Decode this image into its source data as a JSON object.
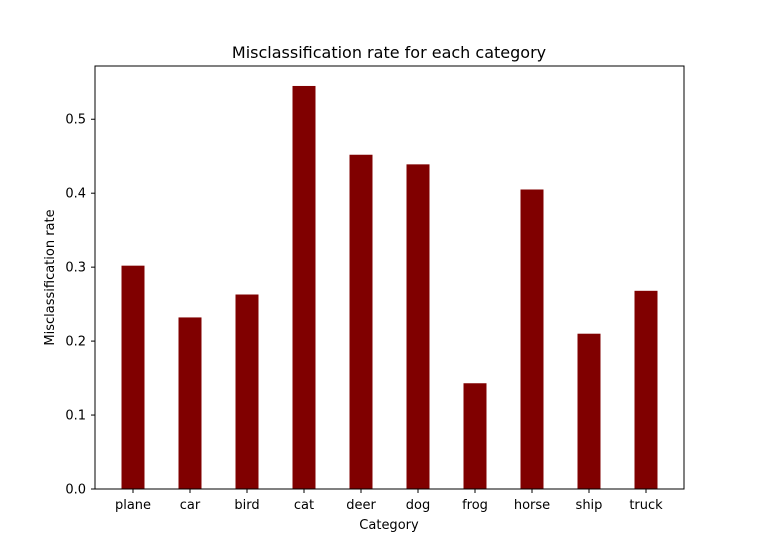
{
  "chart_data": {
    "type": "bar",
    "title": "Misclassification rate for each category",
    "xlabel": "Category",
    "ylabel": "Misclassification rate",
    "categories": [
      "plane",
      "car",
      "bird",
      "cat",
      "deer",
      "dog",
      "frog",
      "horse",
      "ship",
      "truck"
    ],
    "values": [
      0.302,
      0.232,
      0.263,
      0.545,
      0.452,
      0.439,
      0.143,
      0.405,
      0.21,
      0.268
    ],
    "ylim": [
      0,
      0.572
    ],
    "yticks": [
      0.0,
      0.1,
      0.2,
      0.3,
      0.4,
      0.5
    ],
    "ytick_labels": [
      "0.0",
      "0.1",
      "0.2",
      "0.3",
      "0.4",
      "0.5"
    ],
    "grid": false,
    "bar_color": "#800000"
  }
}
